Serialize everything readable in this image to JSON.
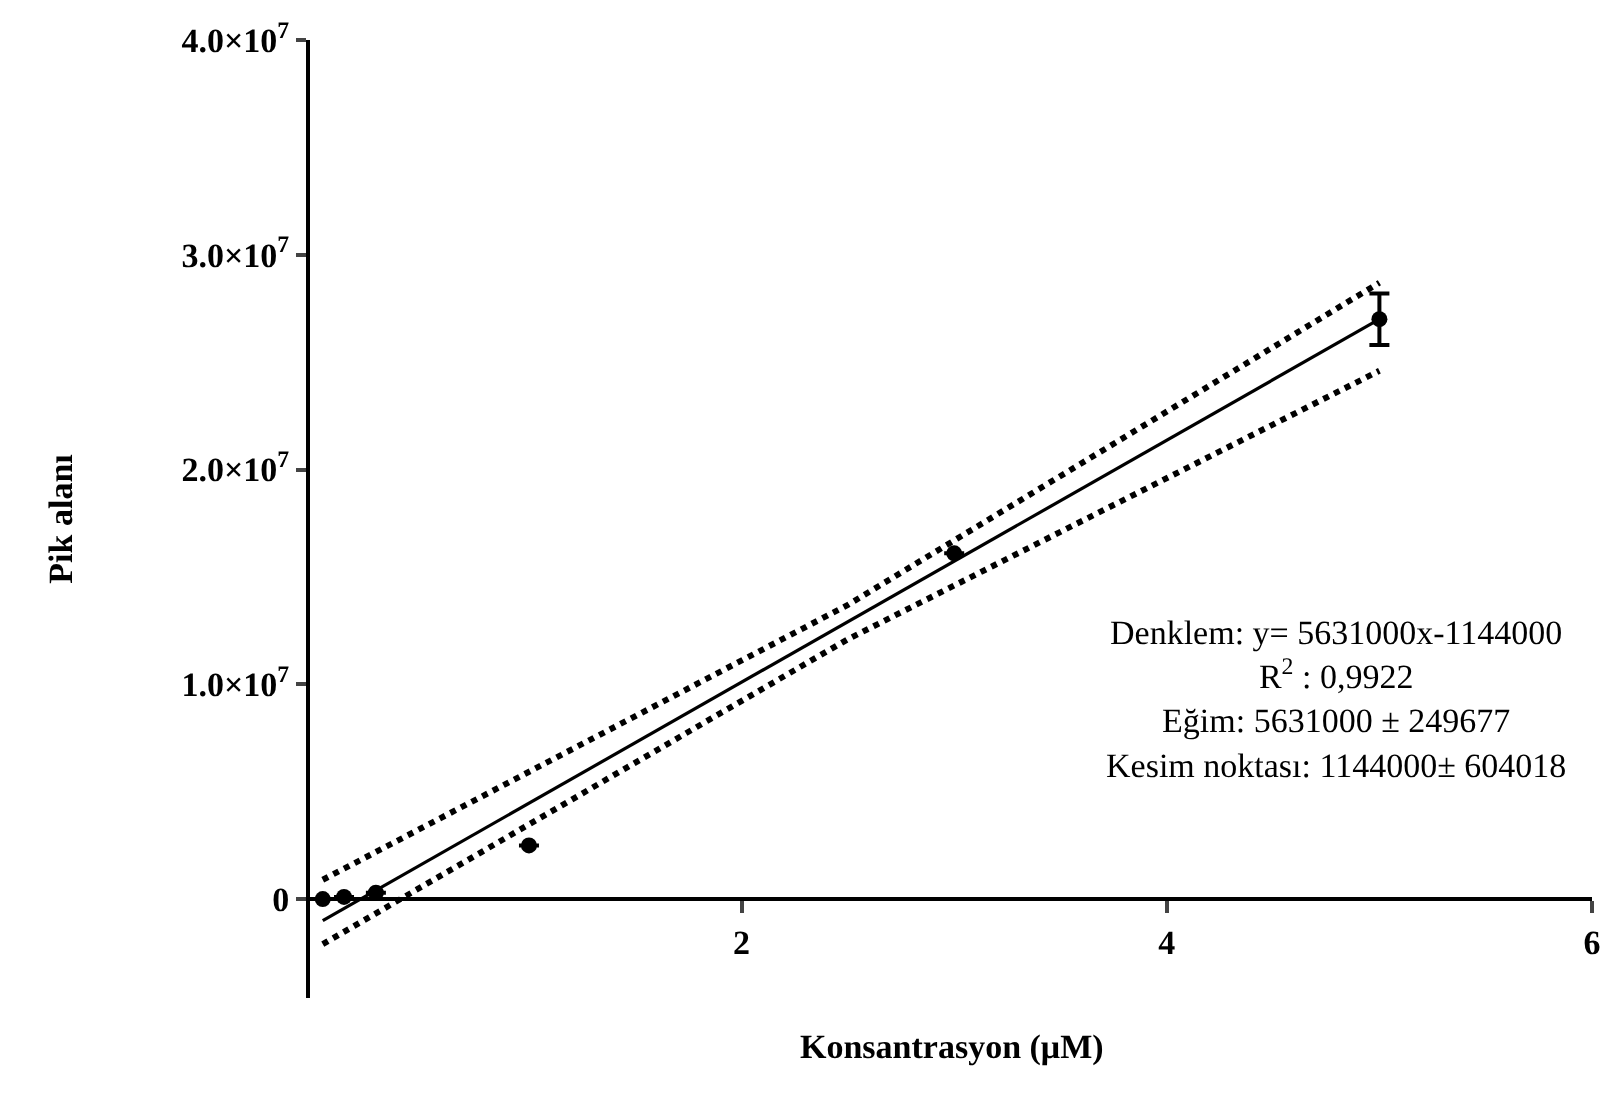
{
  "chart_data": {
    "type": "scatter",
    "xlabel": "Konsantrasyon (μM)",
    "ylabel": "Pik alanı",
    "xlim": [
      -0.03,
      6
    ],
    "ylim": [
      -4600000,
      40000000
    ],
    "xticks": [
      2,
      4,
      6
    ],
    "yticks": [
      0,
      {
        "value": 10000000,
        "label": "1.0×10$^{7}$"
      },
      {
        "value": 20000000,
        "label": "2.0×10$^{7}$"
      },
      {
        "value": 30000000,
        "label": "3.0×10$^{7}$"
      },
      {
        "value": 40000000,
        "label": "4.0×10$^{7}$"
      }
    ],
    "series": [
      {
        "color": "#000000",
        "marker": "circle",
        "x": [
          0.03,
          0.13,
          0.28,
          1,
          3,
          5
        ],
        "values": [
          0,
          100000,
          300000,
          2500000,
          16100000,
          27000000
        ],
        "errors": [
          null,
          null,
          null,
          null,
          null,
          [
            25800000,
            28200000
          ]
        ]
      },
      {
        "type": "line",
        "color": "#000000",
        "line_style": "solid",
        "marker": "none",
        "x": [
          0.03,
          5
        ],
        "values": [
          -1000000,
          27000000
        ]
      },
      {
        "type": "line",
        "color": "#000000",
        "line_style": "dotted",
        "marker": "none",
        "x": [
          0.03,
          2.5,
          5
        ],
        "values": [
          900000,
          13700000,
          28700000
        ]
      },
      {
        "type": "line",
        "color": "#000000",
        "line_style": "dotted",
        "marker": "none",
        "x": [
          0.03,
          2.5,
          5
        ],
        "values": [
          -2100000,
          12100000,
          24600000
        ]
      }
    ],
    "annotations": [
      "Denklem: y= 5631000x-1144000",
      "R$^{2}$ : 0,9922",
      "Eğim: 5631000 ± 249677",
      "Kesim noktası: 1144000± 604018"
    ]
  }
}
